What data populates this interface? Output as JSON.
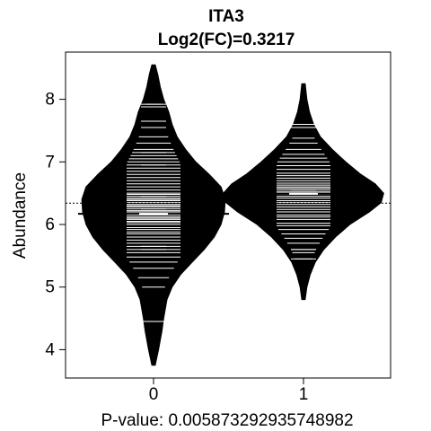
{
  "chart_data": {
    "type": "beanplot",
    "title": "ITA3",
    "subtitle": "Log2(FC)=0.3217",
    "xlabel": "P-value: 0.005873292935748982",
    "ylabel": "Abundance",
    "categories": [
      "0",
      "1"
    ],
    "y_ticks": [
      4,
      5,
      6,
      7,
      8
    ],
    "ylim": [
      3.7,
      8.6
    ],
    "overall_mean": 6.34,
    "overall_mean_line": "dotted",
    "grid": false,
    "legend": "none",
    "beans": [
      {
        "category": "0",
        "mean": 6.17,
        "min": 3.75,
        "max": 8.55,
        "density_profile": [
          [
            3.75,
            0.02
          ],
          [
            4.0,
            0.06
          ],
          [
            4.3,
            0.1
          ],
          [
            4.5,
            0.12
          ],
          [
            4.8,
            0.16
          ],
          [
            5.0,
            0.22
          ],
          [
            5.2,
            0.32
          ],
          [
            5.4,
            0.46
          ],
          [
            5.6,
            0.6
          ],
          [
            5.8,
            0.72
          ],
          [
            6.0,
            0.8
          ],
          [
            6.2,
            0.84
          ],
          [
            6.4,
            0.85
          ],
          [
            6.6,
            0.8
          ],
          [
            6.8,
            0.66
          ],
          [
            7.0,
            0.5
          ],
          [
            7.2,
            0.38
          ],
          [
            7.4,
            0.28
          ],
          [
            7.6,
            0.22
          ],
          [
            7.8,
            0.18
          ],
          [
            8.0,
            0.12
          ],
          [
            8.2,
            0.08
          ],
          [
            8.4,
            0.05
          ],
          [
            8.55,
            0.02
          ]
        ],
        "highlight_values": [
          4.45,
          5.85,
          5.65,
          5.6,
          6.0,
          6.05,
          6.25,
          6.45,
          6.95,
          7.15,
          7.55,
          7.65,
          7.88,
          7.92
        ],
        "observations": [
          4.45,
          5.0,
          5.15,
          5.3,
          5.4,
          5.48,
          5.55,
          5.6,
          5.65,
          5.7,
          5.75,
          5.8,
          5.85,
          5.88,
          5.92,
          5.95,
          6.0,
          6.03,
          6.05,
          6.08,
          6.1,
          6.12,
          6.15,
          6.18,
          6.2,
          6.22,
          6.25,
          6.28,
          6.3,
          6.32,
          6.35,
          6.38,
          6.4,
          6.42,
          6.45,
          6.48,
          6.5,
          6.55,
          6.6,
          6.65,
          6.7,
          6.75,
          6.8,
          6.85,
          6.9,
          6.95,
          7.0,
          7.05,
          7.1,
          7.15,
          7.2,
          7.3,
          7.4,
          7.55,
          7.65,
          7.88,
          7.92
        ]
      },
      {
        "category": "1",
        "mean": 6.49,
        "min": 4.8,
        "max": 8.25,
        "density_profile": [
          [
            4.8,
            0.02
          ],
          [
            5.0,
            0.04
          ],
          [
            5.2,
            0.08
          ],
          [
            5.4,
            0.14
          ],
          [
            5.6,
            0.24
          ],
          [
            5.8,
            0.38
          ],
          [
            6.0,
            0.55
          ],
          [
            6.2,
            0.78
          ],
          [
            6.35,
            0.92
          ],
          [
            6.5,
            0.95
          ],
          [
            6.65,
            0.85
          ],
          [
            6.8,
            0.68
          ],
          [
            7.0,
            0.5
          ],
          [
            7.2,
            0.34
          ],
          [
            7.4,
            0.2
          ],
          [
            7.6,
            0.12
          ],
          [
            7.8,
            0.07
          ],
          [
            8.0,
            0.04
          ],
          [
            8.25,
            0.02
          ]
        ],
        "highlight_values": [
          5.45,
          5.6,
          6.5,
          6.55,
          7.55,
          7.6
        ],
        "observations": [
          5.45,
          5.55,
          5.6,
          5.7,
          5.78,
          5.85,
          5.92,
          5.98,
          6.02,
          6.08,
          6.12,
          6.15,
          6.2,
          6.24,
          6.28,
          6.32,
          6.35,
          6.38,
          6.42,
          6.45,
          6.48,
          6.5,
          6.52,
          6.55,
          6.58,
          6.6,
          6.63,
          6.66,
          6.7,
          6.74,
          6.78,
          6.82,
          6.88,
          6.94,
          7.0,
          7.06,
          7.12,
          7.2,
          7.3,
          7.38,
          7.55,
          7.6
        ]
      }
    ]
  }
}
